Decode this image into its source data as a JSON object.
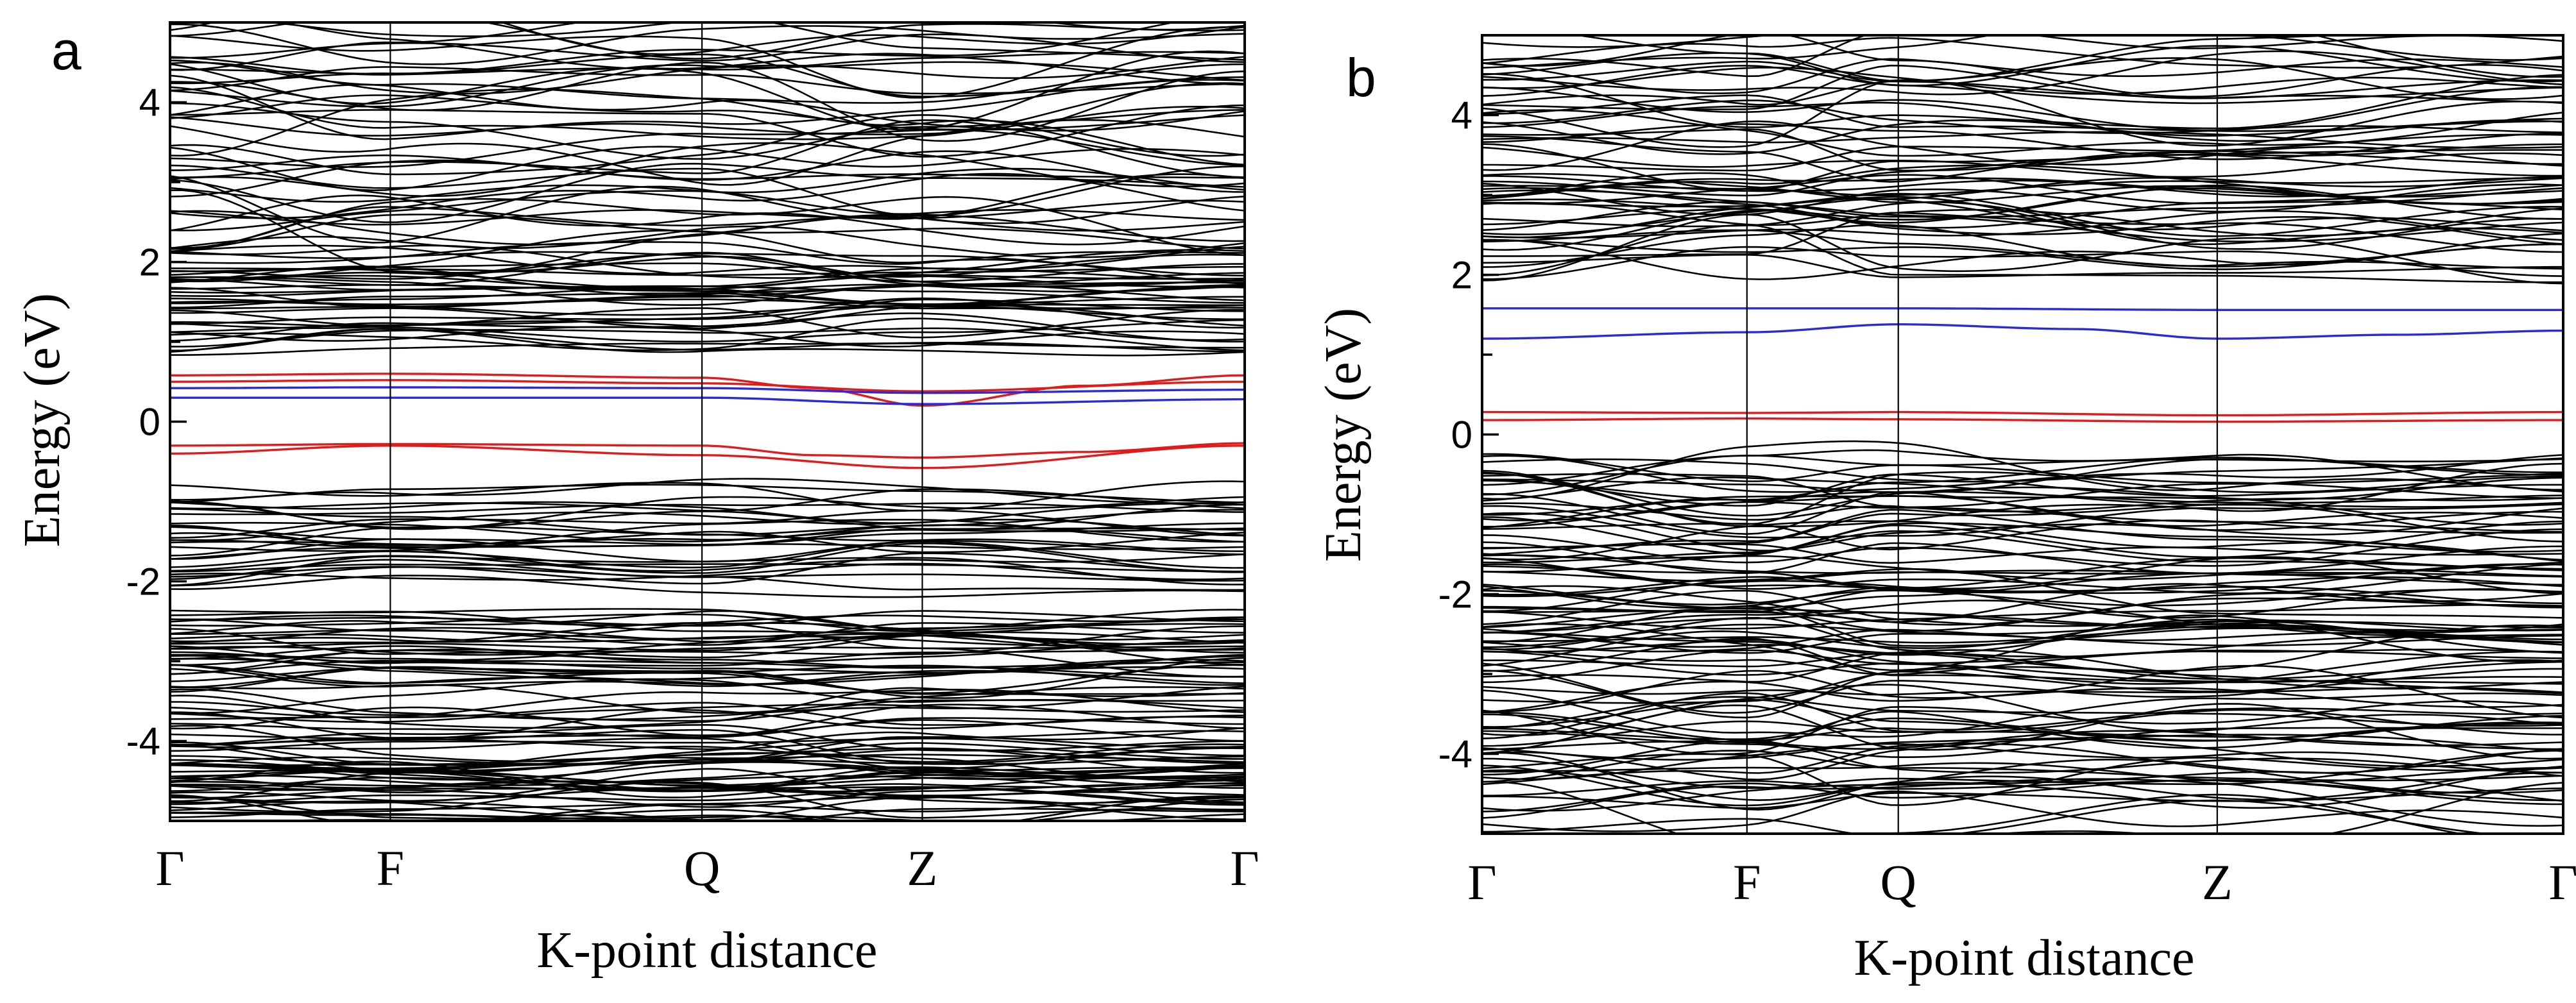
{
  "chart_data": [
    {
      "type": "line",
      "panel": "a",
      "title": "",
      "xlabel": "K-point distance",
      "ylabel": "Energy (eV)",
      "ylim": [
        -5,
        5
      ],
      "yticks": [
        4,
        2,
        0,
        -2,
        -4
      ],
      "ytick_labels": [
        "4",
        "2",
        "0",
        "-2",
        "-4"
      ],
      "minor_yticks": true,
      "kpoints": [
        {
          "label": "Γ",
          "x": 0
        },
        {
          "label": "F",
          "x": 0.205
        },
        {
          "label": "Q",
          "x": 0.495
        },
        {
          "label": "Z",
          "x": 0.7
        },
        {
          "label": "Γ",
          "x": 1
        }
      ],
      "band_groups": [
        {
          "color": "#000000",
          "count": 50,
          "range": [
            2.1,
            4.95
          ],
          "amplitude": 0.45,
          "seed": 11
        },
        {
          "color": "#000000",
          "count": 34,
          "range": [
            0.95,
            2.05
          ],
          "amplitude": 0.22,
          "seed": 23
        },
        {
          "color": "#000000",
          "count": 30,
          "range": [
            -2.0,
            -0.9
          ],
          "amplitude": 0.22,
          "seed": 37
        },
        {
          "color": "#000000",
          "count": 30,
          "range": [
            -3.3,
            -2.4
          ],
          "amplitude": 0.2,
          "seed": 41
        },
        {
          "color": "#000000",
          "count": 18,
          "range": [
            -4.1,
            -3.4
          ],
          "amplitude": 0.25,
          "seed": 53
        },
        {
          "color": "#000000",
          "count": 36,
          "range": [
            -4.95,
            -4.15
          ],
          "amplitude": 0.2,
          "seed": 67
        }
      ],
      "highlight_bands": [
        {
          "name": "red-upper",
          "color": "#e01b1b",
          "x": [
            0,
            0.205,
            0.495,
            0.6,
            0.7,
            0.85,
            1
          ],
          "y": [
            0.58,
            0.6,
            0.55,
            0.42,
            0.2,
            0.45,
            0.58
          ]
        },
        {
          "name": "red-upper-2",
          "color": "#e01b1b",
          "x": [
            0,
            0.205,
            0.495,
            0.7,
            1
          ],
          "y": [
            0.5,
            0.52,
            0.48,
            0.38,
            0.5
          ]
        },
        {
          "name": "blue-upper",
          "color": "#2a2ad6",
          "x": [
            0,
            0.205,
            0.495,
            0.7,
            1
          ],
          "y": [
            0.42,
            0.43,
            0.42,
            0.36,
            0.4
          ]
        },
        {
          "name": "blue-lower",
          "color": "#2a2ad6",
          "x": [
            0,
            0.205,
            0.495,
            0.7,
            1
          ],
          "y": [
            0.3,
            0.3,
            0.3,
            0.22,
            0.28
          ]
        },
        {
          "name": "red-lower",
          "color": "#e01b1b",
          "x": [
            0,
            0.205,
            0.495,
            0.6,
            0.7,
            0.85,
            1
          ],
          "y": [
            -0.3,
            -0.28,
            -0.3,
            -0.42,
            -0.45,
            -0.38,
            -0.27
          ]
        },
        {
          "name": "red-lower-2",
          "color": "#e01b1b",
          "x": [
            0,
            0.205,
            0.495,
            0.7,
            1
          ],
          "y": [
            -0.4,
            -0.3,
            -0.42,
            -0.58,
            -0.3
          ]
        }
      ]
    },
    {
      "type": "line",
      "panel": "b",
      "title": "",
      "xlabel": "K-point distance",
      "ylabel": "Energy (eV)",
      "ylim": [
        -5,
        5
      ],
      "yticks": [
        4,
        2,
        0,
        -2,
        -4
      ],
      "ytick_labels": [
        "4",
        "2",
        "0",
        "-2",
        "-4"
      ],
      "minor_yticks": true,
      "kpoints": [
        {
          "label": "Γ",
          "x": 0
        },
        {
          "label": "F",
          "x": 0.245
        },
        {
          "label": "Q",
          "x": 0.385
        },
        {
          "label": "Z",
          "x": 0.68
        },
        {
          "label": "Γ",
          "x": 1
        }
      ],
      "band_groups": [
        {
          "color": "#000000",
          "count": 26,
          "range": [
            3.6,
            4.95
          ],
          "amplitude": 0.4,
          "seed": 71
        },
        {
          "color": "#000000",
          "count": 34,
          "range": [
            2.1,
            3.5
          ],
          "amplitude": 0.35,
          "seed": 83
        },
        {
          "color": "#000000",
          "count": 34,
          "range": [
            -1.6,
            -0.35
          ],
          "amplitude": 0.3,
          "seed": 97
        },
        {
          "color": "#000000",
          "count": 36,
          "range": [
            -3.0,
            -1.7
          ],
          "amplitude": 0.3,
          "seed": 101
        },
        {
          "color": "#000000",
          "count": 40,
          "range": [
            -4.85,
            -3.1
          ],
          "amplitude": 0.35,
          "seed": 113
        }
      ],
      "highlight_bands": [
        {
          "name": "blue-upper",
          "color": "#2a2ad6",
          "x": [
            0,
            0.245,
            0.385,
            0.68,
            1
          ],
          "y": [
            1.58,
            1.58,
            1.58,
            1.56,
            1.56
          ]
        },
        {
          "name": "blue-lower",
          "color": "#2a2ad6",
          "x": [
            0,
            0.245,
            0.385,
            0.55,
            0.68,
            0.85,
            1
          ],
          "y": [
            1.2,
            1.28,
            1.38,
            1.32,
            1.2,
            1.25,
            1.3
          ]
        },
        {
          "name": "red-upper",
          "color": "#e01b1b",
          "x": [
            0,
            0.245,
            0.385,
            0.68,
            1
          ],
          "y": [
            0.28,
            0.27,
            0.28,
            0.24,
            0.28
          ]
        },
        {
          "name": "red-lower",
          "color": "#e01b1b",
          "x": [
            0,
            0.245,
            0.385,
            0.68,
            1
          ],
          "y": [
            0.18,
            0.2,
            0.19,
            0.16,
            0.18
          ]
        }
      ]
    }
  ]
}
